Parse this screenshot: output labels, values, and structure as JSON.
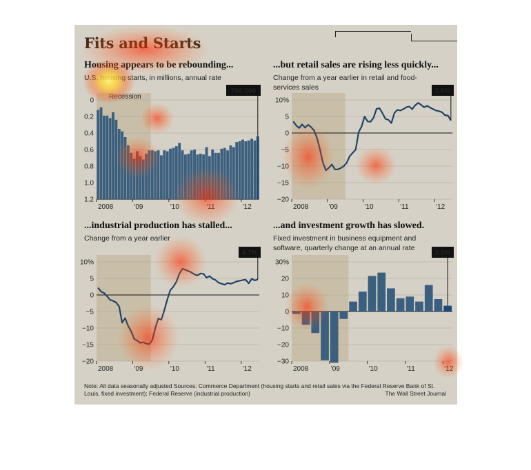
{
  "title": "Fits and Starts",
  "footnote": "Note: All data seasonally adjusted    Sources: Commerce Department (housing starts and retail sales via the Federal Reserve Bank of St. Louis, fixed investment); Federal Reserve (industrial production)",
  "credit": "The Wall Street Journal",
  "colors": {
    "bar": "#3b5f7e",
    "line": "#1f4466",
    "recession": "#c9bfa8",
    "background": "#d6d1c6",
    "callout": "#111111"
  },
  "chart_data": [
    {
      "id": "housing",
      "type": "bar",
      "subtitle": "Housing appears to be rebounding...",
      "description": "U.S. housing starts, in millions, annual rate",
      "annotation": "Recession",
      "callout": "760,000",
      "x_tick_labels": [
        "2008",
        "'09",
        "'10",
        "'11",
        "'12"
      ],
      "y_tick_labels": [
        "0",
        "0.2",
        "0.4",
        "0.6",
        "0.8",
        "1.0",
        "1.2"
      ],
      "ylim": [
        0,
        1.2
      ],
      "x_start": "2008-01",
      "x_end": "2012-06",
      "recession": [
        "2008-01",
        "2009-06"
      ],
      "values": [
        1.08,
        1.11,
        1.01,
        1.01,
        0.98,
        1.05,
        0.96,
        0.85,
        0.82,
        0.75,
        0.65,
        0.56,
        0.49,
        0.58,
        0.52,
        0.48,
        0.55,
        0.59,
        0.59,
        0.58,
        0.59,
        0.53,
        0.59,
        0.58,
        0.61,
        0.62,
        0.64,
        0.68,
        0.59,
        0.54,
        0.55,
        0.59,
        0.6,
        0.54,
        0.55,
        0.54,
        0.63,
        0.52,
        0.6,
        0.56,
        0.56,
        0.61,
        0.62,
        0.59,
        0.65,
        0.63,
        0.69,
        0.7,
        0.72,
        0.7,
        0.71,
        0.73,
        0.71,
        0.76
      ]
    },
    {
      "id": "retail",
      "type": "line",
      "subtitle": "...but retail sales are rising less quickly...",
      "description": "Change from a year earlier in retail and food-services sales",
      "callout": "3.8%",
      "x_tick_labels": [
        "2008",
        "'09",
        "'10",
        "'11",
        "'12"
      ],
      "y_tick_labels": [
        "10%",
        "5",
        "0",
        "−5",
        "−10",
        "−15",
        "−20"
      ],
      "ylim": [
        -20,
        10
      ],
      "x_start": "2008-01",
      "x_end": "2012-06",
      "recession": [
        "2008-01",
        "2009-06"
      ],
      "values": [
        3.5,
        2.3,
        1.5,
        2.6,
        1.6,
        2.5,
        1.8,
        0.8,
        -1.5,
        -5,
        -9,
        -11.3,
        -10.5,
        -9.5,
        -11,
        -11,
        -10.6,
        -10,
        -9,
        -7,
        -6,
        -5,
        0.3,
        2,
        5,
        3.5,
        3.4,
        4.6,
        7.3,
        7.5,
        6,
        4.3,
        4,
        3,
        6,
        7,
        6.8,
        7.2,
        7.8,
        8,
        7.2,
        8.4,
        9.1,
        8.5,
        7.8,
        8.2,
        7.7,
        7.2,
        6.8,
        6.6,
        6.3,
        5.4,
        5.3,
        3.8
      ]
    },
    {
      "id": "industrial",
      "type": "line",
      "subtitle": "...industrial production has stalled...",
      "description": "Change from a year earlier",
      "callout": "4.7%",
      "x_tick_labels": [
        "2008",
        "'09",
        "'10",
        "'11",
        "'12"
      ],
      "y_tick_labels": [
        "10%",
        "5",
        "0",
        "−5",
        "−10",
        "−15",
        "−20"
      ],
      "ylim": [
        -20,
        10
      ],
      "x_start": "2008-01",
      "x_end": "2012-06",
      "recession": [
        "2008-01",
        "2009-06"
      ],
      "values": [
        2.2,
        1,
        0.6,
        -0.4,
        -1.5,
        -1.8,
        -2.3,
        -3.5,
        -8.4,
        -7,
        -9.4,
        -11,
        -13.3,
        -13.8,
        -14.5,
        -14.3,
        -14.7,
        -14.9,
        -13.6,
        -10,
        -7.1,
        -7.5,
        -4.6,
        -1.3,
        1.5,
        2.5,
        4,
        6.5,
        7.9,
        7.6,
        7.2,
        6.8,
        6.2,
        5.9,
        6.5,
        6.4,
        5.2,
        5.7,
        4.9,
        4.5,
        3.7,
        3.4,
        3.1,
        3.6,
        3.4,
        3.7,
        4.1,
        4.3,
        4.5,
        4.6,
        3.5,
        4.9,
        4.4,
        4.7
      ]
    },
    {
      "id": "investment",
      "type": "bar",
      "subtitle": "...and investment growth has slowed.",
      "description": "Fixed investment in business equipment and software, quarterly change at an annual rate",
      "callout": "3.5%",
      "x_tick_labels": [
        "2008",
        "'09",
        "'10",
        "'11",
        "'12"
      ],
      "y_tick_labels": [
        "30%",
        "20",
        "10",
        "0",
        "−10",
        "−20",
        "−30"
      ],
      "ylim": [
        -30,
        30
      ],
      "x_start": "2008-Q1",
      "x_end": "2012-Q1",
      "recession": [
        "2008-Q1",
        "2009-Q2"
      ],
      "values": [
        -1.5,
        -8,
        -13,
        -29.5,
        -31,
        -4.5,
        6,
        12,
        21.5,
        23.5,
        14,
        8,
        9,
        6,
        16,
        7.5,
        3.5
      ]
    }
  ]
}
